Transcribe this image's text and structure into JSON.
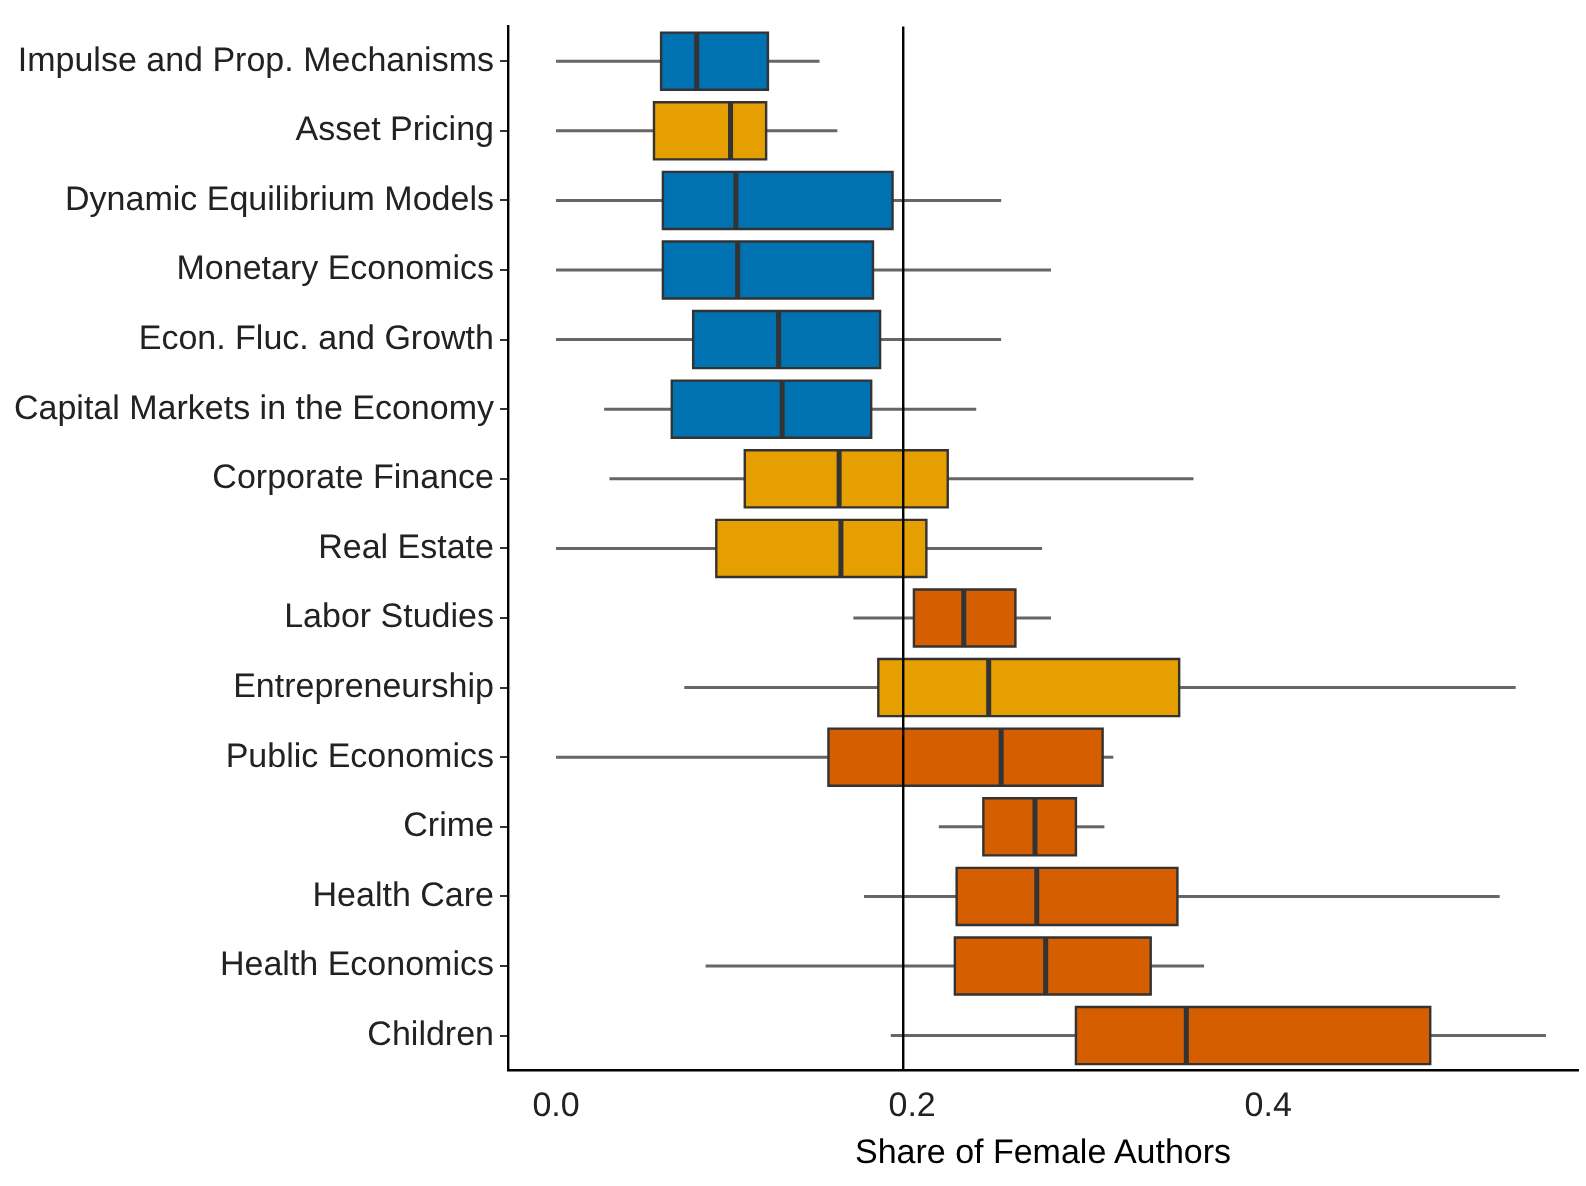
{
  "chart_data": {
    "type": "box",
    "orientation": "horizontal",
    "xlabel": "Share of Female Authors",
    "categories": [
      "Impulse and Prop. Mechanisms",
      "Asset Pricing",
      "Dynamic Equilibrium Models",
      "Monetary Economics",
      "Econ. Fluc. and Growth",
      "Capital Markets in the Economy",
      "Corporate Finance",
      "Real Estate",
      "Labor Studies",
      "Entrepreneurship",
      "Public Economics",
      "Crime",
      "Health Care",
      "Health Economics",
      "Children"
    ],
    "boxes": [
      {
        "low": 0,
        "q1": 0.059,
        "median": 0.079,
        "q3": 0.119,
        "high": 0.148
      },
      {
        "low": 0,
        "q1": 0.055,
        "median": 0.098,
        "q3": 0.118,
        "high": 0.158
      },
      {
        "low": 0,
        "q1": 0.06,
        "median": 0.101,
        "q3": 0.189,
        "high": 0.25
      },
      {
        "low": 0,
        "q1": 0.06,
        "median": 0.102,
        "q3": 0.178,
        "high": 0.278
      },
      {
        "low": 0,
        "q1": 0.077,
        "median": 0.125,
        "q3": 0.182,
        "high": 0.25
      },
      {
        "low": 0.027,
        "q1": 0.065,
        "median": 0.127,
        "q3": 0.177,
        "high": 0.236
      },
      {
        "low": 0.03,
        "q1": 0.106,
        "median": 0.159,
        "q3": 0.22,
        "high": 0.358
      },
      {
        "low": 0,
        "q1": 0.09,
        "median": 0.16,
        "q3": 0.208,
        "high": 0.273
      },
      {
        "low": 0.167,
        "q1": 0.201,
        "median": 0.229,
        "q3": 0.258,
        "high": 0.278
      },
      {
        "low": 0.072,
        "q1": 0.181,
        "median": 0.243,
        "q3": 0.35,
        "high": 0.539
      },
      {
        "low": 0,
        "q1": 0.153,
        "median": 0.25,
        "q3": 0.307,
        "high": 0.313
      },
      {
        "low": 0.215,
        "q1": 0.24,
        "median": 0.269,
        "q3": 0.292,
        "high": 0.308
      },
      {
        "low": 0.173,
        "q1": 0.225,
        "median": 0.27,
        "q3": 0.349,
        "high": 0.53
      },
      {
        "low": 0.084,
        "q1": 0.224,
        "median": 0.275,
        "q3": 0.334,
        "high": 0.364
      },
      {
        "low": 0.188,
        "q1": 0.292,
        "median": 0.354,
        "q3": 0.491,
        "high": 0.556
      }
    ],
    "colors": [
      "#0072b2",
      "#e69f00",
      "#0072b2",
      "#0072b2",
      "#0072b2",
      "#0072b2",
      "#e69f00",
      "#e69f00",
      "#d55e00",
      "#e69f00",
      "#d55e00",
      "#d55e00",
      "#d55e00",
      "#d55e00",
      "#d55e00"
    ],
    "xlim": [
      -0.027,
      0.574
    ],
    "xticks": [
      {
        "value": 0,
        "label": "0.0"
      },
      0.2,
      0.4
    ],
    "ref_lines": [
      {
        "axis": "x",
        "value": 0.195
      }
    ],
    "grid": false,
    "legend": false
  }
}
